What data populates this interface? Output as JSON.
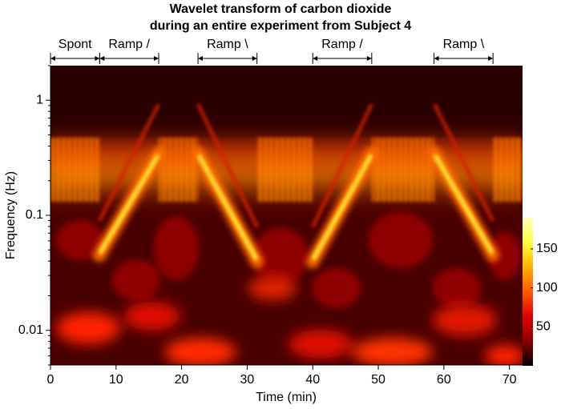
{
  "chart_data": {
    "type": "heatmap",
    "title": "Wavelet transform of carbon dioxide",
    "subtitle": "during an entire experiment from Subject 4",
    "xlabel": "Time (min)",
    "ylabel": "Frequency (Hz)",
    "xlim": [
      0,
      72
    ],
    "xticks": [
      0,
      10,
      20,
      30,
      40,
      50,
      60,
      70
    ],
    "ylim": [
      0.005,
      2
    ],
    "yticks": [
      0.01,
      0.1,
      1
    ],
    "ylog": true,
    "colorbar": {
      "lim": [
        0,
        190
      ],
      "ticks": [
        50,
        100,
        150
      ],
      "colors": [
        "#000000",
        "#8a0000",
        "#e00000",
        "#ff5a00",
        "#ffb000",
        "#ffff40",
        "#ffffc0"
      ]
    },
    "annotations": [
      {
        "text": "Spont",
        "x": [
          0,
          7.5
        ]
      },
      {
        "text": "Ramp /",
        "x": [
          7.5,
          16.5
        ]
      },
      {
        "text": "Ramp \\",
        "x": [
          22.5,
          31.5
        ]
      },
      {
        "text": "Ramp /",
        "x": [
          40,
          49
        ]
      },
      {
        "text": "Ramp \\",
        "x": [
          58.5,
          67.5
        ]
      }
    ]
  }
}
